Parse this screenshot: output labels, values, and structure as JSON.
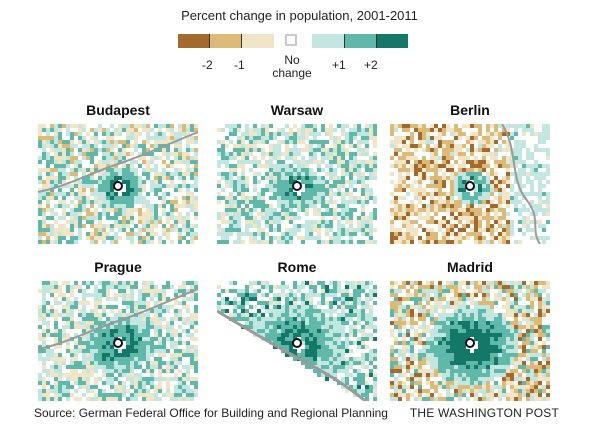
{
  "legend": {
    "title": "Percent change in population, 2001-2011",
    "ticks": [
      "-2",
      "-1",
      "+1",
      "+2"
    ],
    "no_change_line1": "No",
    "no_change_line2": "change",
    "colors": {
      "decline_strong": "#a26a2f",
      "decline_moderate": "#dcbb78",
      "decline_slight": "#f1e5c8",
      "no_change": "#ffffff",
      "growth_slight": "#c4e6e0",
      "growth_moderate": "#5fb8aa",
      "growth_strong": "#137867",
      "water": "#9a9a9a"
    }
  },
  "maps": [
    {
      "city": "Budapest",
      "pattern": "budapest"
    },
    {
      "city": "Warsaw",
      "pattern": "warsaw"
    },
    {
      "city": "Berlin",
      "pattern": "berlin"
    },
    {
      "city": "Prague",
      "pattern": "prague"
    },
    {
      "city": "Rome",
      "pattern": "rome"
    },
    {
      "city": "Madrid",
      "pattern": "madrid"
    }
  ],
  "footer": {
    "source": "Source: German Federal Office for Building and Regional Planning",
    "credit": "THE WASHINGTON POST"
  }
}
